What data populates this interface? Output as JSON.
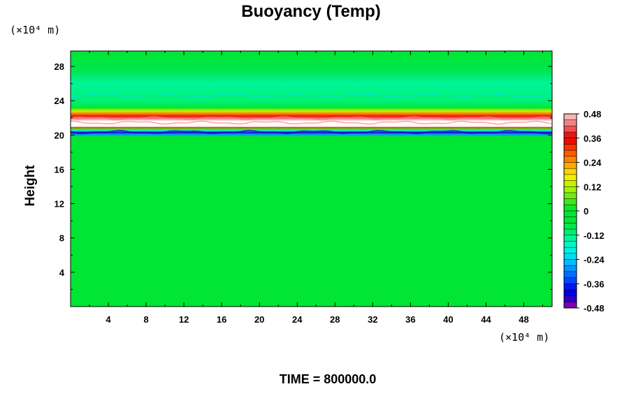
{
  "chart_data": {
    "type": "heatmap",
    "title": "Buoyancy (Temp)",
    "ylabel": "Height",
    "xlabel": "",
    "x_unit": "(×10⁴ m)",
    "y_unit": "(×10⁴ m)",
    "xlim": [
      0,
      51
    ],
    "ylim": [
      0,
      29.8
    ],
    "xticks": [
      4,
      8,
      12,
      16,
      20,
      24,
      28,
      32,
      36,
      40,
      44,
      48
    ],
    "yticks": [
      4,
      8,
      12,
      16,
      20,
      24,
      28
    ],
    "colorbar": {
      "range": [
        -0.48,
        0.48
      ],
      "ticks": [
        0.48,
        0.36,
        0.24,
        0.12,
        0,
        -0.12,
        -0.24,
        -0.36,
        -0.48
      ],
      "colors": [
        "#7f00b2",
        "#2a00c8",
        "#0000dc",
        "#0019f0",
        "#0046ff",
        "#006eff",
        "#0096ff",
        "#00bcff",
        "#00dcf5",
        "#00f0e6",
        "#00f5c8",
        "#00f59a",
        "#00ee70",
        "#00e650",
        "#00e632",
        "#00e632",
        "#10e628",
        "#40e61e",
        "#70eb14",
        "#9ef50a",
        "#c8f000",
        "#eef000",
        "#ffd200",
        "#ffaa00",
        "#ff8200",
        "#ff5a00",
        "#ff3200",
        "#f00a00",
        "#e61414",
        "#f05050",
        "#f58282",
        "#fab4b4"
      ]
    },
    "profile": [
      {
        "y": 0,
        "value": -0.02
      },
      {
        "y": 19.8,
        "value": -0.02
      },
      {
        "y": 20.1,
        "value": -0.3
      },
      {
        "y": 20.3,
        "value": -0.44
      },
      {
        "y": 20.5,
        "value": -0.2
      },
      {
        "y": 20.7,
        "value": 0.05
      },
      {
        "y": 20.9,
        "value": 0.3
      },
      {
        "y": 21.0,
        "value": 0.5
      },
      {
        "y": 21.6,
        "value": 0.55
      },
      {
        "y": 21.9,
        "value": 0.44
      },
      {
        "y": 22.2,
        "value": 0.36
      },
      {
        "y": 22.5,
        "value": 0.24
      },
      {
        "y": 22.8,
        "value": 0.12
      },
      {
        "y": 23.2,
        "value": -0.05
      },
      {
        "y": 23.8,
        "value": -0.12
      },
      {
        "y": 26.0,
        "value": -0.14
      },
      {
        "y": 27.5,
        "value": -0.09
      },
      {
        "y": 29.8,
        "value": -0.03
      }
    ],
    "time_label": "TIME = 800000.0"
  }
}
